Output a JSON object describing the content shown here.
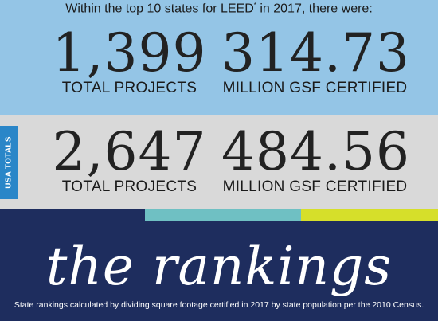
{
  "intro": {
    "text": "Within the top 10 states for LEED",
    "sup": "*",
    "tail": " in 2017, there were:"
  },
  "top10": {
    "projects_value": "1,399",
    "projects_label": "TOTAL PROJECTS",
    "gsf_value": "314.73",
    "gsf_label": "MILLION GSF CERTIFIED"
  },
  "usa": {
    "tab_label": "USA TOTALS",
    "projects_value": "2,647",
    "projects_label": "TOTAL PROJECTS",
    "gsf_value": "484.56",
    "gsf_label": "MILLION GSF CERTIFIED"
  },
  "colors": {
    "light_blue": "#94c5e6",
    "gray": "#d9d9d9",
    "navy": "#1e2d5e",
    "tab_blue": "#2a86c8",
    "stripe_teal": "#6fc0c3",
    "stripe_lime": "#d6df2a"
  },
  "rankings": {
    "title": "the rankings",
    "footnote": "State rankings calculated by dividing square footage certified in 2017 by state population per the 2010 Census."
  }
}
